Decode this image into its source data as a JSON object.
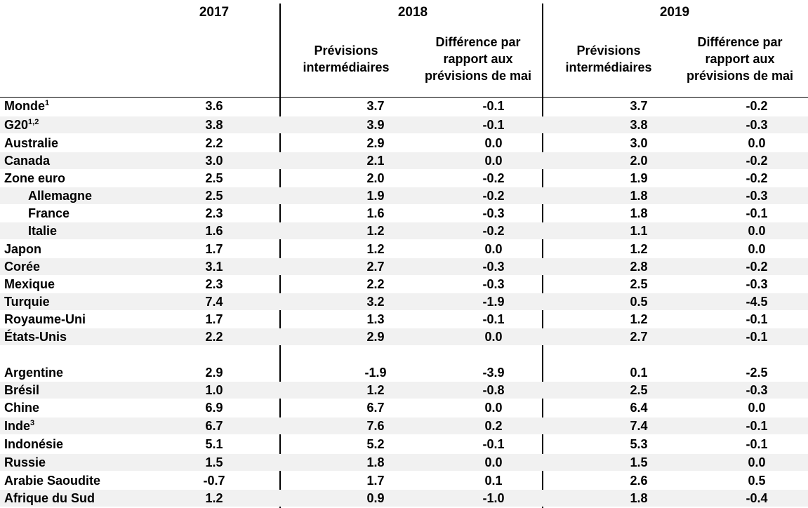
{
  "header": {
    "year_2017": "2017",
    "year_2018": "2018",
    "year_2019": "2019",
    "col_forecast": [
      "Prévisions",
      "intermédiaires"
    ],
    "col_difference": [
      "Différence par",
      "rapport aux",
      "prévisions de mai"
    ]
  },
  "rows": [
    {
      "label": "Monde",
      "sup": "1",
      "indent": false,
      "v2017": "3.6",
      "p2018": "3.7",
      "d2018": "-0.1",
      "p2019": "3.7",
      "d2019": "-0.2"
    },
    {
      "label": "G20",
      "sup": "1,2",
      "indent": false,
      "v2017": "3.8",
      "p2018": "3.9",
      "d2018": "-0.1",
      "p2019": "3.8",
      "d2019": "-0.3"
    },
    {
      "label": "Australie",
      "sup": "",
      "indent": false,
      "v2017": "2.2",
      "p2018": "2.9",
      "d2018": "0.0",
      "p2019": "3.0",
      "d2019": "0.0"
    },
    {
      "label": "Canada",
      "sup": "",
      "indent": false,
      "v2017": "3.0",
      "p2018": "2.1",
      "d2018": "0.0",
      "p2019": "2.0",
      "d2019": "-0.2"
    },
    {
      "label": "Zone euro",
      "sup": "",
      "indent": false,
      "v2017": "2.5",
      "p2018": "2.0",
      "d2018": "-0.2",
      "p2019": "1.9",
      "d2019": "-0.2"
    },
    {
      "label": "Allemagne",
      "sup": "",
      "indent": true,
      "v2017": "2.5",
      "p2018": "1.9",
      "d2018": "-0.2",
      "p2019": "1.8",
      "d2019": "-0.3"
    },
    {
      "label": "France",
      "sup": "",
      "indent": true,
      "v2017": "2.3",
      "p2018": "1.6",
      "d2018": "-0.3",
      "p2019": "1.8",
      "d2019": "-0.1"
    },
    {
      "label": "Italie",
      "sup": "",
      "indent": true,
      "v2017": "1.6",
      "p2018": "1.2",
      "d2018": "-0.2",
      "p2019": "1.1",
      "d2019": "0.0"
    },
    {
      "label": "Japon",
      "sup": "",
      "indent": false,
      "v2017": "1.7",
      "p2018": "1.2",
      "d2018": "0.0",
      "p2019": "1.2",
      "d2019": "0.0"
    },
    {
      "label": "Corée",
      "sup": "",
      "indent": false,
      "v2017": "3.1",
      "p2018": "2.7",
      "d2018": "-0.3",
      "p2019": "2.8",
      "d2019": "-0.2"
    },
    {
      "label": "Mexique",
      "sup": "",
      "indent": false,
      "v2017": "2.3",
      "p2018": "2.2",
      "d2018": "-0.3",
      "p2019": "2.5",
      "d2019": "-0.3"
    },
    {
      "label": "Turquie",
      "sup": "",
      "indent": false,
      "v2017": "7.4",
      "p2018": "3.2",
      "d2018": "-1.9",
      "p2019": "0.5",
      "d2019": "-4.5"
    },
    {
      "label": "Royaume-Uni",
      "sup": "",
      "indent": false,
      "v2017": "1.7",
      "p2018": "1.3",
      "d2018": "-0.1",
      "p2019": "1.2",
      "d2019": "-0.1"
    },
    {
      "label": "États-Unis",
      "sup": "",
      "indent": false,
      "v2017": "2.2",
      "p2018": "2.9",
      "d2018": "0.0",
      "p2019": "2.7",
      "d2019": "-0.1"
    },
    {
      "label": "Argentine",
      "sup": "",
      "indent": false,
      "v2017": "2.9",
      "p2018": "-1.9",
      "d2018": "-3.9",
      "p2019": "0.1",
      "d2019": "-2.5"
    },
    {
      "label": "Brésil",
      "sup": "",
      "indent": false,
      "v2017": "1.0",
      "p2018": "1.2",
      "d2018": "-0.8",
      "p2019": "2.5",
      "d2019": "-0.3"
    },
    {
      "label": "Chine",
      "sup": "",
      "indent": false,
      "v2017": "6.9",
      "p2018": "6.7",
      "d2018": "0.0",
      "p2019": "6.4",
      "d2019": "0.0"
    },
    {
      "label": "Inde",
      "sup": "3",
      "indent": false,
      "v2017": "6.7",
      "p2018": "7.6",
      "d2018": "0.2",
      "p2019": "7.4",
      "d2019": "-0.1"
    },
    {
      "label": "Indonésie",
      "sup": "",
      "indent": false,
      "v2017": "5.1",
      "p2018": "5.2",
      "d2018": "-0.1",
      "p2019": "5.3",
      "d2019": "-0.1"
    },
    {
      "label": "Russie",
      "sup": "",
      "indent": false,
      "v2017": "1.5",
      "p2018": "1.8",
      "d2018": "0.0",
      "p2019": "1.5",
      "d2019": "0.0"
    },
    {
      "label": "Arabie Saoudite",
      "sup": "",
      "indent": false,
      "v2017": "-0.7",
      "p2018": "1.7",
      "d2018": "0.1",
      "p2019": "2.6",
      "d2019": "0.5"
    },
    {
      "label": "Afrique du Sud",
      "sup": "",
      "indent": false,
      "v2017": "1.2",
      "p2018": "0.9",
      "d2018": "-1.0",
      "p2019": "1.8",
      "d2019": "-0.4"
    }
  ]
}
